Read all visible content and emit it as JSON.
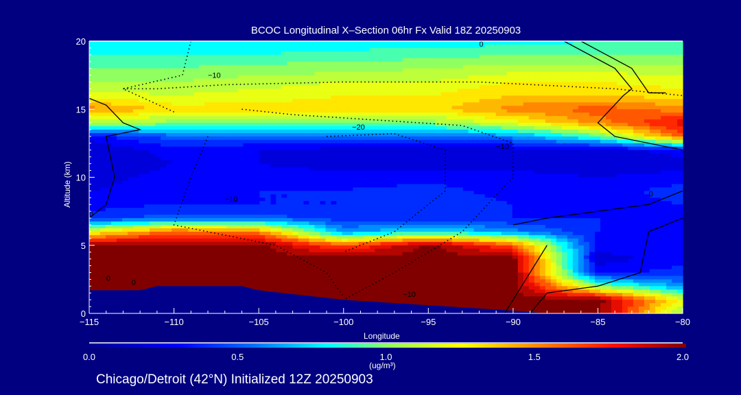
{
  "chart_data": {
    "type": "heatmap",
    "title": "BCOC Longitudinal X–Section 06hr  Fx Valid 18Z 20250903",
    "xlabel": "Longitude",
    "ylabel": "Altitude (km)",
    "xlim": [
      -115,
      -80
    ],
    "ylim": [
      0,
      20
    ],
    "xticks": [
      -115,
      -110,
      -105,
      -100,
      -95,
      -90,
      -85,
      -80
    ],
    "xtick_labels": [
      "−115",
      "−110",
      "−105",
      "−100",
      "−95",
      "−90",
      "−85",
      "−80"
    ],
    "yticks": [
      0,
      5,
      10,
      15,
      20
    ],
    "ytick_labels": [
      "0",
      "5",
      "10",
      "15",
      "20"
    ],
    "grid_lon": [
      -115,
      -110,
      -105,
      -100,
      -95,
      -90,
      -85,
      -80
    ],
    "grid_alt": [
      0,
      1,
      2,
      3,
      4,
      5,
      6,
      7,
      8,
      9,
      10,
      11,
      12,
      13,
      14,
      15,
      16,
      17,
      18,
      19,
      20
    ],
    "values": [
      [
        2,
        2,
        2,
        2,
        2,
        2,
        2,
        1.0
      ],
      [
        2,
        2,
        2,
        2,
        2,
        2,
        2,
        1.2
      ],
      [
        2,
        2,
        2,
        2,
        2,
        2,
        1.0,
        0.6
      ],
      [
        2,
        2,
        2,
        2,
        2,
        2,
        0.3,
        0.4
      ],
      [
        2,
        2,
        2,
        2,
        2,
        2,
        0.2,
        0.3
      ],
      [
        2,
        2,
        2,
        1.6,
        2,
        1.6,
        0.3,
        0.35
      ],
      [
        1.2,
        1.6,
        1.5,
        0.6,
        0.8,
        0.6,
        0.35,
        0.35
      ],
      [
        0.4,
        0.5,
        0.5,
        0.4,
        0.4,
        0.35,
        0.35,
        0.3
      ],
      [
        0.3,
        0.35,
        0.35,
        0.35,
        0.45,
        0.35,
        0.3,
        0.35
      ],
      [
        0.25,
        0.3,
        0.35,
        0.35,
        0.4,
        0.3,
        0.3,
        0.4
      ],
      [
        0.2,
        0.3,
        0.3,
        0.3,
        0.3,
        0.3,
        0.25,
        0.3
      ],
      [
        0.15,
        0.25,
        0.25,
        0.2,
        0.2,
        0.2,
        0.15,
        0.2
      ],
      [
        0.15,
        0.3,
        0.25,
        0.2,
        0.2,
        0.2,
        0.2,
        0.3
      ],
      [
        0.3,
        0.5,
        0.5,
        0.5,
        0.5,
        0.6,
        0.9,
        1.6
      ],
      [
        1.1,
        1.0,
        1.0,
        0.9,
        1.0,
        1.2,
        1.5,
        1.8
      ],
      [
        1.5,
        1.3,
        1.3,
        1.3,
        1.3,
        1.5,
        1.6,
        1.5
      ],
      [
        1.2,
        1.15,
        1.2,
        1.25,
        1.25,
        1.35,
        1.35,
        1.3
      ],
      [
        1.05,
        1.05,
        1.1,
        1.15,
        1.15,
        1.25,
        1.25,
        1.2
      ],
      [
        0.95,
        0.95,
        1.0,
        1.0,
        1.05,
        1.1,
        1.1,
        1.1
      ],
      [
        0.85,
        0.85,
        0.85,
        0.9,
        0.9,
        0.95,
        0.95,
        0.95
      ],
      [
        0.75,
        0.75,
        0.75,
        0.75,
        0.8,
        0.8,
        0.85,
        0.85
      ]
    ],
    "terrain": [
      [
        -115,
        1.7
      ],
      [
        -112,
        1.7
      ],
      [
        -111,
        2.0
      ],
      [
        -106,
        2.0
      ],
      [
        -105,
        1.7
      ],
      [
        -100,
        1.0
      ],
      [
        -95,
        0.6
      ],
      [
        -90,
        0.2
      ],
      [
        -88,
        0
      ],
      [
        -80,
        0
      ]
    ],
    "contours": [
      {
        "style": "dotted",
        "points": [
          [
            -109,
            20
          ],
          [
            -109.5,
            17.5
          ],
          [
            -113,
            16.5
          ],
          [
            -110,
            14.8
          ]
        ]
      },
      {
        "style": "dotted",
        "points": [
          [
            -113,
            16.5
          ],
          [
            -111,
            16.5
          ],
          [
            -107,
            16.8
          ],
          [
            -100,
            17
          ],
          [
            -92,
            17
          ],
          [
            -84,
            16.5
          ],
          [
            -80,
            16
          ]
        ]
      },
      {
        "style": "dotted",
        "points": [
          [
            -106,
            15
          ],
          [
            -103,
            14.6
          ],
          [
            -98,
            14.2
          ],
          [
            -93,
            13.8
          ],
          [
            -90,
            12.5
          ],
          [
            -90,
            10
          ],
          [
            -93,
            6
          ],
          [
            -97,
            3
          ],
          [
            -100,
            1
          ]
        ]
      },
      {
        "style": "dotted",
        "points": [
          [
            -108,
            13
          ],
          [
            -109,
            10
          ],
          [
            -110,
            6.5
          ],
          [
            -108,
            6
          ],
          [
            -104,
            5
          ],
          [
            -101,
            3
          ],
          [
            -100,
            1.2
          ]
        ]
      },
      {
        "style": "dotted",
        "points": [
          [
            -101,
            13
          ],
          [
            -97,
            13.2
          ],
          [
            -94,
            12
          ],
          [
            -94,
            9
          ],
          [
            -97,
            6
          ],
          [
            -100,
            4.5
          ]
        ]
      },
      {
        "style": "solid",
        "points": [
          [
            -115,
            15.8
          ],
          [
            -114,
            15.3
          ],
          [
            -113,
            14
          ],
          [
            -112,
            13.5
          ],
          [
            -114,
            13
          ],
          [
            -113.5,
            10
          ],
          [
            -114,
            8
          ],
          [
            -115,
            7
          ]
        ]
      },
      {
        "style": "solid",
        "points": [
          [
            -87,
            20
          ],
          [
            -84,
            18
          ],
          [
            -83,
            16.5
          ],
          [
            -83.5,
            16
          ],
          [
            -85,
            14
          ],
          [
            -84,
            13
          ],
          [
            -80,
            12
          ]
        ]
      },
      {
        "style": "solid",
        "points": [
          [
            -81,
            16.2
          ],
          [
            -82,
            16.2
          ],
          [
            -83,
            18
          ],
          [
            -86,
            20
          ]
        ]
      },
      {
        "style": "solid",
        "points": [
          [
            -80,
            9
          ],
          [
            -82,
            8
          ],
          [
            -85,
            7.5
          ],
          [
            -88,
            7
          ],
          [
            -90,
            6.5
          ]
        ]
      },
      {
        "style": "solid",
        "points": [
          [
            -80,
            7
          ],
          [
            -82,
            6
          ],
          [
            -82.5,
            3
          ],
          [
            -85,
            2
          ],
          [
            -88,
            1.5
          ],
          [
            -89,
            0
          ]
        ]
      },
      {
        "style": "solid",
        "points": [
          [
            -88,
            5
          ],
          [
            -89,
            3
          ],
          [
            -90,
            1
          ],
          [
            -90.5,
            0
          ]
        ]
      }
    ],
    "contour_labels": [
      {
        "text": "−10",
        "lon": -108,
        "alt": 17.3
      },
      {
        "text": "−20",
        "lon": -99.5,
        "alt": 13.5
      },
      {
        "text": "−10",
        "lon": -91,
        "alt": 12.1
      },
      {
        "text": "0",
        "lon": -92,
        "alt": 19.6
      },
      {
        "text": "−10",
        "lon": -107,
        "alt": 8.2
      },
      {
        "text": "0",
        "lon": -115,
        "alt": 7.1
      },
      {
        "text": "0",
        "lon": -114,
        "alt": 2.4
      },
      {
        "text": "0",
        "lon": -112.5,
        "alt": 2.1
      },
      {
        "text": "−10",
        "lon": -96.5,
        "alt": 1.2
      },
      {
        "text": "0",
        "lon": -82,
        "alt": 8.6
      }
    ],
    "colorbar": {
      "range": [
        0,
        2
      ],
      "ticks": [
        "0.0",
        "0.5",
        "1.0",
        "1.5",
        "2.0"
      ],
      "units": "(ug/m³)",
      "stops": [
        [
          0.0,
          "#000090"
        ],
        [
          0.3,
          "#0000ff"
        ],
        [
          0.55,
          "#0070ff"
        ],
        [
          0.8,
          "#00ffff"
        ],
        [
          1.0,
          "#90ff60"
        ],
        [
          1.25,
          "#ffff00"
        ],
        [
          1.45,
          "#ffa000"
        ],
        [
          1.75,
          "#ff1000"
        ],
        [
          2.0,
          "#800000"
        ]
      ]
    }
  },
  "footer": "Chicago/Detroit (42°N) Initialized 12Z 20250903",
  "colors": {
    "background": "#000080",
    "terrain": "#00008b"
  }
}
